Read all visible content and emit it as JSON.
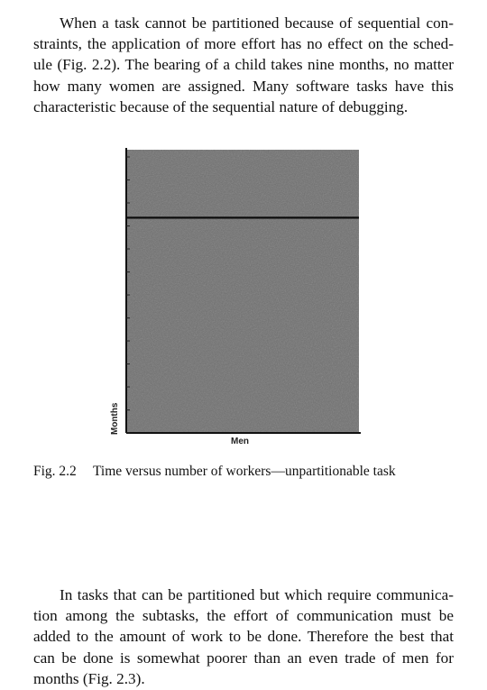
{
  "paragraph_top": [
    "When a task cannot be partitioned because of sequential con-",
    "straints, the application of more effort has no effect on the sched-",
    "ule (Fig. 2.2). The bearing of a child takes nine months, no matter",
    "how many women are assigned. Many software tasks have this",
    "characteristic because of the sequential nature of debugging."
  ],
  "figure": {
    "caption_number": "Fig. 2.2",
    "caption_text": "Time versus number of workers—unpartitionable task",
    "chart_data": {
      "type": "line",
      "xlabel": "Men",
      "ylabel": "Months",
      "series": [
        {
          "x": [
            0,
            1
          ],
          "values": [
            0.76,
            0.76
          ]
        }
      ],
      "grid": false,
      "fill_color": "#6f6f6f",
      "line_color": "#0d0d0d"
    }
  },
  "paragraph_bottom": [
    "In tasks that can be partitioned but which require communica-",
    "tion among the subtasks, the effort of communication must be",
    "added to the amount of work to be done. Therefore the best that",
    "can be done is somewhat poorer than an even trade of men for",
    "months (Fig. 2.3)."
  ]
}
